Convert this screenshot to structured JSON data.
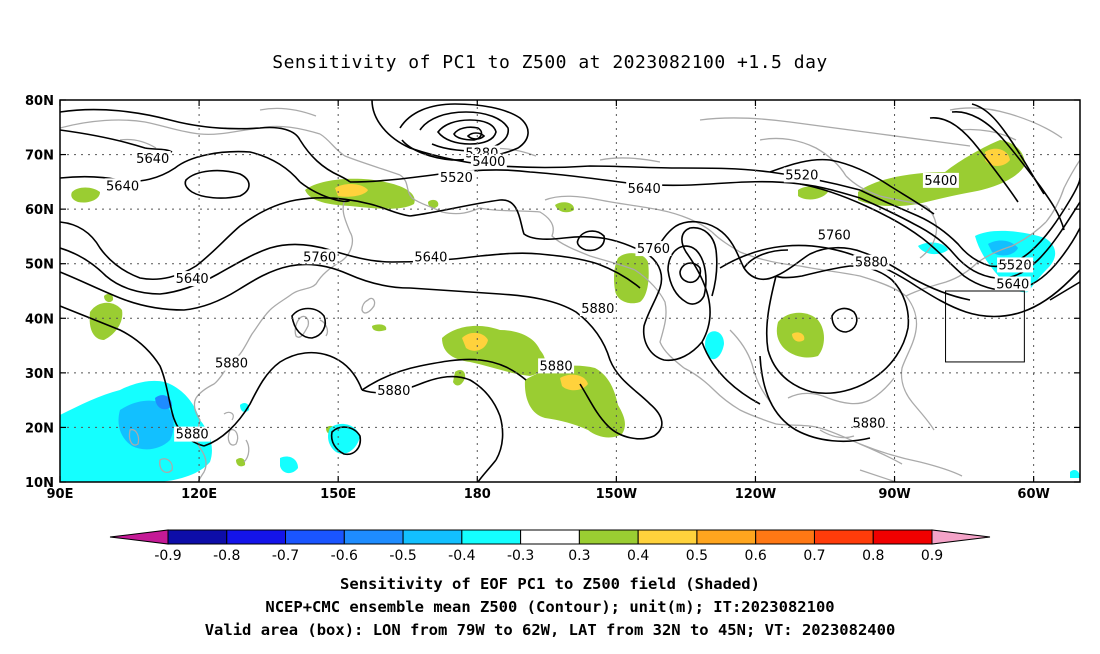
{
  "title": "Sensitivity of PC1 to Z500 at 2023082100 +1.5 day",
  "map": {
    "lon_range": [
      90,
      310
    ],
    "lat_range": [
      10,
      80
    ],
    "lon_ticks": [
      {
        "lon": 90,
        "label": "90E"
      },
      {
        "lon": 120,
        "label": "120E"
      },
      {
        "lon": 150,
        "label": "150E"
      },
      {
        "lon": 180,
        "label": "180"
      },
      {
        "lon": 210,
        "label": "150W"
      },
      {
        "lon": 240,
        "label": "120W"
      },
      {
        "lon": 270,
        "label": "90W"
      },
      {
        "lon": 300,
        "label": "60W"
      }
    ],
    "lat_ticks": [
      {
        "lat": 80,
        "label": "80N"
      },
      {
        "lat": 70,
        "label": "70N"
      },
      {
        "lat": 60,
        "label": "60N"
      },
      {
        "lat": 50,
        "label": "50N"
      },
      {
        "lat": 40,
        "label": "40N"
      },
      {
        "lat": 30,
        "label": "30N"
      },
      {
        "lat": 20,
        "label": "20N"
      },
      {
        "lat": 10,
        "label": "10N"
      }
    ],
    "grid": true,
    "coastline_color": "#aaaaaa",
    "valid_box": {
      "lon": [
        281,
        298
      ],
      "lat": [
        32,
        45
      ]
    },
    "contour_labels": [
      {
        "text": "5640",
        "lon": 110.0,
        "lat": 69.0
      },
      {
        "text": "5640",
        "lon": 103.5,
        "lat": 64.0
      },
      {
        "text": "5640",
        "lon": 118.5,
        "lat": 47.0
      },
      {
        "text": "5760",
        "lon": 146.0,
        "lat": 51.0
      },
      {
        "text": "5640",
        "lon": 170.0,
        "lat": 51.0
      },
      {
        "text": "5880",
        "lon": 127.0,
        "lat": 31.5
      },
      {
        "text": "5880",
        "lon": 118.5,
        "lat": 18.5
      },
      {
        "text": "5880",
        "lon": 162.0,
        "lat": 26.5
      },
      {
        "text": "5880",
        "lon": 197.0,
        "lat": 31.0
      },
      {
        "text": "5880",
        "lon": 206.0,
        "lat": 41.5
      },
      {
        "text": "5280",
        "lon": 181.0,
        "lat": 70.0
      },
      {
        "text": "5400",
        "lon": 182.5,
        "lat": 68.5
      },
      {
        "text": "5520",
        "lon": 175.5,
        "lat": 65.5
      },
      {
        "text": "5640",
        "lon": 216.0,
        "lat": 63.5
      },
      {
        "text": "5760",
        "lon": 218.0,
        "lat": 52.5
      },
      {
        "text": "5520",
        "lon": 250.0,
        "lat": 66.0
      },
      {
        "text": "5760",
        "lon": 257.0,
        "lat": 55.0
      },
      {
        "text": "5880",
        "lon": 265.0,
        "lat": 50.0
      },
      {
        "text": "5400",
        "lon": 280.0,
        "lat": 65.0
      },
      {
        "text": "5520",
        "lon": 296.0,
        "lat": 49.5
      },
      {
        "text": "5640",
        "lon": 295.5,
        "lat": 46.0
      },
      {
        "text": "5880",
        "lon": 264.5,
        "lat": 20.5
      }
    ]
  },
  "colorbar": {
    "levels": [
      "-0.9",
      "-0.8",
      "-0.7",
      "-0.6",
      "-0.5",
      "-0.4",
      "-0.3",
      "0.3",
      "0.4",
      "0.5",
      "0.6",
      "0.7",
      "0.8",
      "0.9"
    ],
    "colors": [
      "#0d0da8",
      "#1414ea",
      "#1a55ff",
      "#1e8cff",
      "#12c0ff",
      "#14ffff",
      "#ffffff",
      "#9acd32",
      "#ffd23c",
      "#ffa51e",
      "#ff7814",
      "#ff3c0a",
      "#f00000"
    ],
    "low_extend_color": "#c41a96",
    "high_extend_color": "#f4a3c8"
  },
  "captions": [
    "Sensitivity of EOF PC1 to Z500 field (Shaded)",
    "NCEP+CMC ensemble mean Z500 (Contour); unit(m); IT:2023082100",
    "Valid area (box): LON from 79W to 62W, LAT from 32N to 45N; VT: 2023082400"
  ]
}
